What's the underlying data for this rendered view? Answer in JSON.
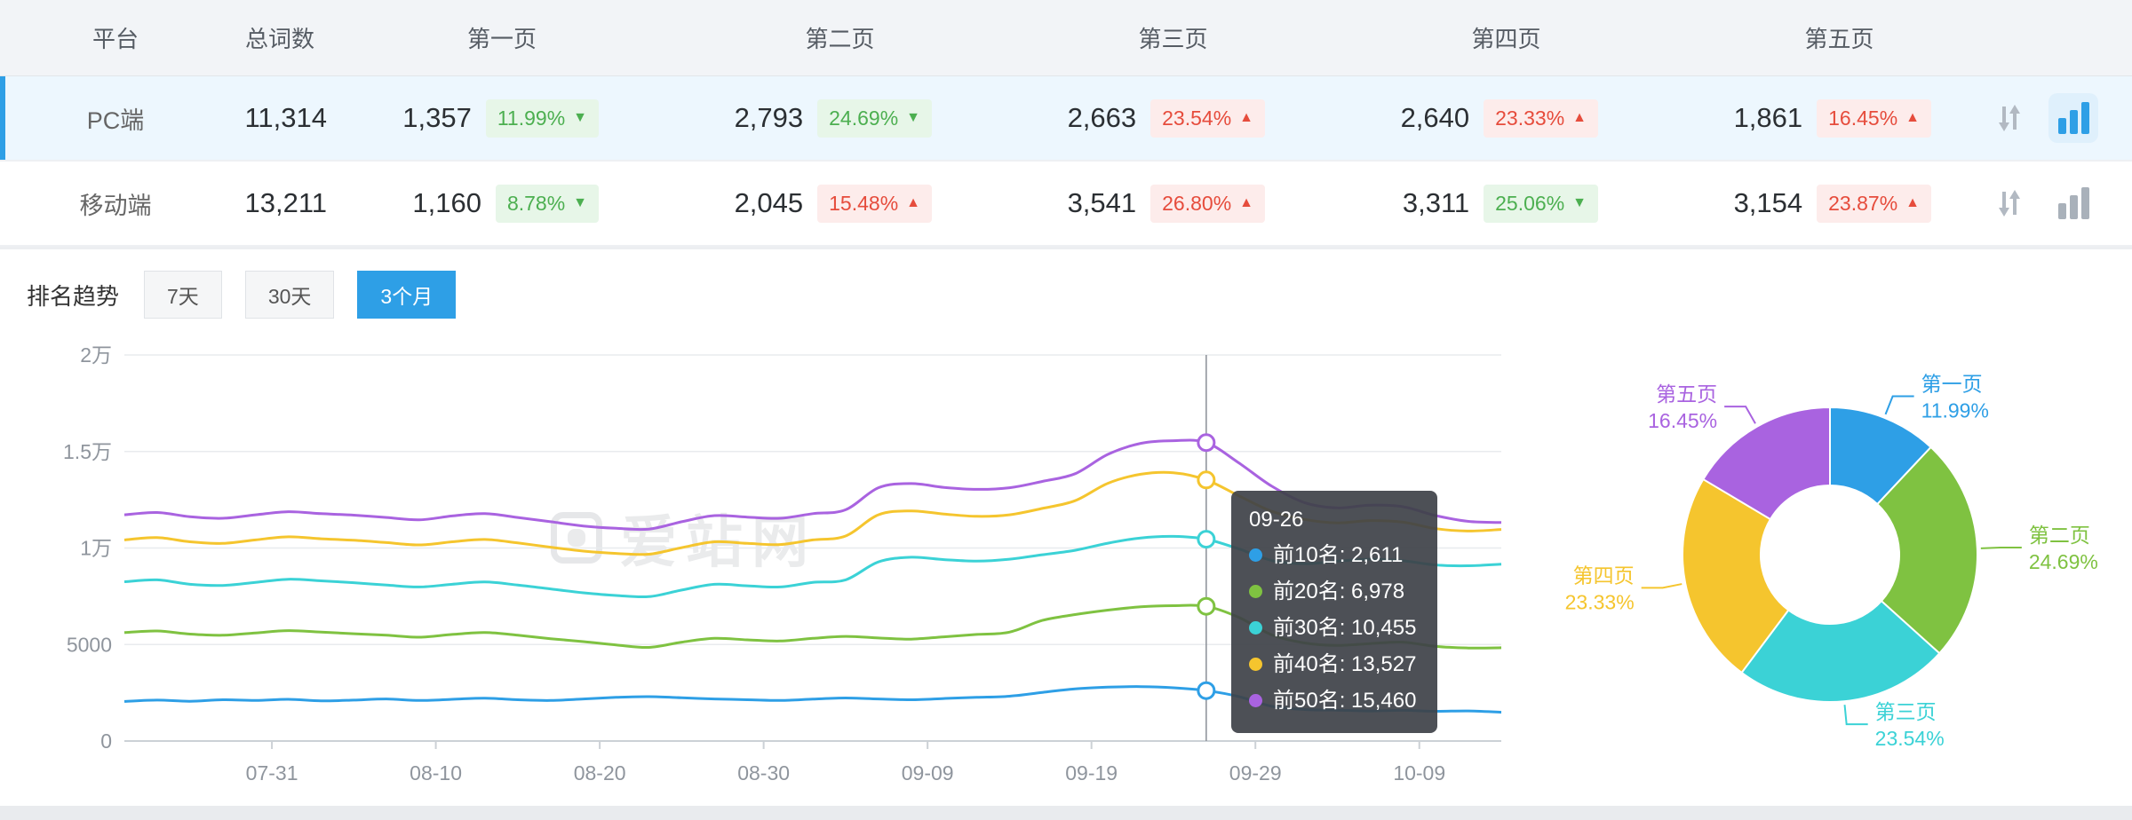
{
  "colors": {
    "accent_blue": "#2e9fe6",
    "badge_up_red": "#e64c3c",
    "badge_down_green": "#4caf50",
    "series_blue": "#2e9fe6",
    "series_green": "#7fc241",
    "series_cyan": "#3bd2d6",
    "series_yellow": "#f5c52e",
    "series_purple": "#a963e0"
  },
  "table": {
    "headers": [
      "平台",
      "总词数",
      "第一页",
      "第二页",
      "第三页",
      "第四页",
      "第五页"
    ],
    "rows": [
      {
        "platform": "PC端",
        "total": "11,314",
        "selected": true,
        "pages": [
          {
            "value": "1,357",
            "pct": "11.99%",
            "dir": "down"
          },
          {
            "value": "2,793",
            "pct": "24.69%",
            "dir": "down"
          },
          {
            "value": "2,663",
            "pct": "23.54%",
            "dir": "up"
          },
          {
            "value": "2,640",
            "pct": "23.33%",
            "dir": "up"
          },
          {
            "value": "1,861",
            "pct": "16.45%",
            "dir": "up"
          }
        ]
      },
      {
        "platform": "移动端",
        "total": "13,211",
        "selected": false,
        "pages": [
          {
            "value": "1,160",
            "pct": "8.78%",
            "dir": "down"
          },
          {
            "value": "2,045",
            "pct": "15.48%",
            "dir": "up"
          },
          {
            "value": "3,541",
            "pct": "26.80%",
            "dir": "up"
          },
          {
            "value": "3,311",
            "pct": "25.06%",
            "dir": "down"
          },
          {
            "value": "3,154",
            "pct": "23.87%",
            "dir": "up"
          }
        ]
      }
    ],
    "icons": {
      "compare": "updown-arrows-icon",
      "chart": "bar-chart-icon"
    }
  },
  "trend": {
    "title": "排名趋势",
    "tabs": [
      {
        "label": "7天",
        "active": false
      },
      {
        "label": "30天",
        "active": false
      },
      {
        "label": "3个月",
        "active": true
      }
    ]
  },
  "watermark": "爱站网",
  "chart_data": [
    {
      "type": "line",
      "title": "排名趋势 3个月",
      "x_ticks": [
        "07-31",
        "08-10",
        "08-20",
        "08-30",
        "09-09",
        "09-19",
        "09-29",
        "10-09"
      ],
      "tick_days": [
        9,
        19,
        29,
        39,
        49,
        59,
        69,
        79
      ],
      "x_domain_days": 84,
      "sample_step_days": 2,
      "y_ticks": [
        "0",
        "5000",
        "1万",
        "1.5万",
        "2万"
      ],
      "ylim": [
        0,
        20000
      ],
      "grid": true,
      "series": [
        {
          "name": "前10名",
          "color": "#2e9fe6",
          "values": [
            2050,
            2120,
            2060,
            2140,
            2100,
            2160,
            2080,
            2120,
            2180,
            2100,
            2160,
            2220,
            2140,
            2100,
            2180,
            2260,
            2300,
            2240,
            2180,
            2140,
            2100,
            2170,
            2230,
            2180,
            2140,
            2200,
            2260,
            2320,
            2520,
            2700,
            2790,
            2820,
            2760,
            2611,
            2300,
            1800,
            1630,
            1600,
            1560,
            1590,
            1540,
            1560,
            1490
          ]
        },
        {
          "name": "前20名",
          "color": "#7fc241",
          "values": [
            5620,
            5700,
            5540,
            5480,
            5600,
            5720,
            5640,
            5560,
            5480,
            5380,
            5520,
            5620,
            5480,
            5300,
            5150,
            4980,
            4850,
            5120,
            5320,
            5240,
            5180,
            5320,
            5420,
            5340,
            5280,
            5400,
            5520,
            5640,
            6250,
            6550,
            6780,
            6950,
            7010,
            6978,
            6400,
            5500,
            5080,
            4950,
            5050,
            5120,
            4900,
            4820,
            4830
          ]
        },
        {
          "name": "前30名",
          "color": "#3bd2d6",
          "values": [
            8250,
            8350,
            8120,
            8060,
            8220,
            8380,
            8300,
            8200,
            8080,
            7980,
            8120,
            8240,
            8080,
            7880,
            7680,
            7540,
            7480,
            7820,
            8120,
            8040,
            7980,
            8220,
            8350,
            9280,
            9520,
            9400,
            9320,
            9420,
            9650,
            9880,
            10250,
            10520,
            10600,
            10455,
            9950,
            9350,
            9180,
            9320,
            9420,
            9340,
            9120,
            9080,
            9160
          ]
        },
        {
          "name": "前40名",
          "color": "#f5c52e",
          "values": [
            10420,
            10540,
            10320,
            10240,
            10420,
            10580,
            10480,
            10400,
            10280,
            10160,
            10320,
            10440,
            10260,
            10040,
            9840,
            9720,
            9680,
            10020,
            10320,
            10240,
            10180,
            10420,
            10620,
            11720,
            11920,
            11760,
            11640,
            11720,
            12050,
            12450,
            13350,
            13820,
            13900,
            13527,
            12700,
            11900,
            11480,
            11300,
            11420,
            11340,
            11000,
            10880,
            10960
          ]
        },
        {
          "name": "前50名",
          "color": "#a963e0",
          "values": [
            11720,
            11840,
            11620,
            11540,
            11720,
            11880,
            11780,
            11700,
            11580,
            11460,
            11660,
            11780,
            11580,
            11360,
            11140,
            11020,
            10980,
            11360,
            11680,
            11600,
            11540,
            11780,
            11980,
            13120,
            13340,
            13140,
            13040,
            13120,
            13450,
            13850,
            14850,
            15420,
            15560,
            15460,
            14400,
            13200,
            12350,
            12080,
            12220,
            12140,
            11680,
            11380,
            11320
          ]
        }
      ],
      "tooltip": {
        "title": "09-26",
        "day": 66,
        "items": [
          {
            "name": "前10名",
            "value": "2,611",
            "color": "#2e9fe6"
          },
          {
            "name": "前20名",
            "value": "6,978",
            "color": "#7fc241"
          },
          {
            "name": "前30名",
            "value": "10,455",
            "color": "#3bd2d6"
          },
          {
            "name": "前40名",
            "value": "13,527",
            "color": "#f5c52e"
          },
          {
            "name": "前50名",
            "value": "15,460",
            "color": "#a963e0"
          }
        ]
      }
    },
    {
      "type": "pie",
      "subtype": "donut",
      "inner_radius_ratio": 0.47,
      "start_angle_deg": -90,
      "slices": [
        {
          "label": "第一页",
          "pct": 11.99,
          "color": "#2e9fe6"
        },
        {
          "label": "第二页",
          "pct": 24.69,
          "color": "#7fc241"
        },
        {
          "label": "第三页",
          "pct": 23.54,
          "color": "#3bd2d6"
        },
        {
          "label": "第四页",
          "pct": 23.33,
          "color": "#f5c52e"
        },
        {
          "label": "第五页",
          "pct": 16.45,
          "color": "#a963e0"
        }
      ]
    }
  ]
}
